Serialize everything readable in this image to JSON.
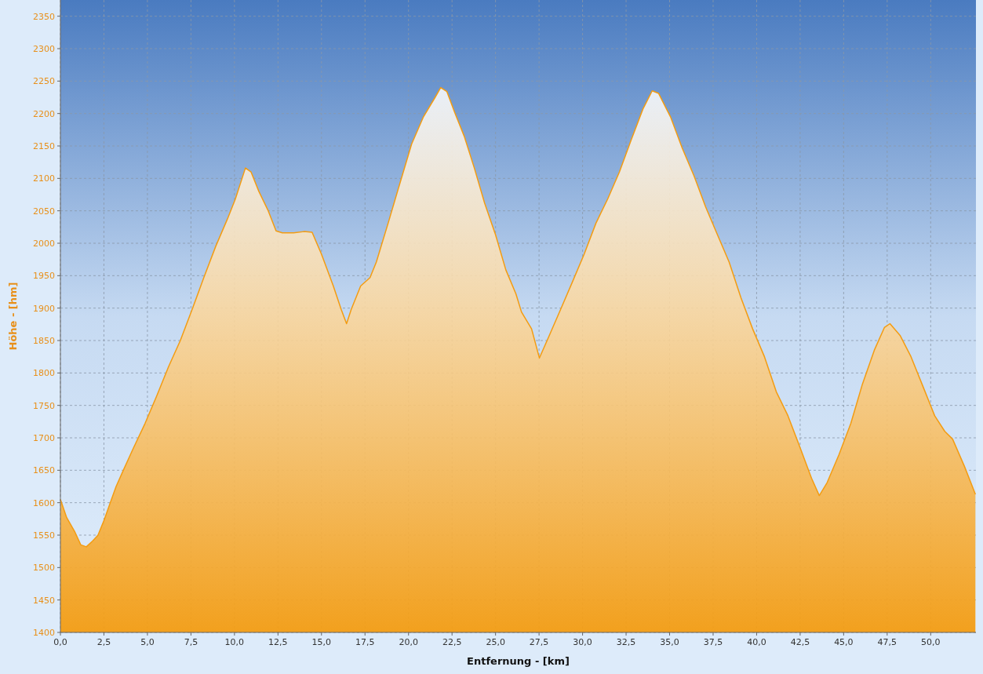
{
  "chart_data": {
    "type": "area",
    "xlabel": "Entfernung - [km]",
    "ylabel": "Höhe - [hm]",
    "grid": true,
    "xlim": [
      0,
      52.6
    ],
    "ylim": [
      1400,
      2375
    ],
    "xticks": [
      {
        "value": 0,
        "label": "0,0"
      },
      {
        "value": 2.5,
        "label": "2,5"
      },
      {
        "value": 5,
        "label": "5,0"
      },
      {
        "value": 7.5,
        "label": "7,5"
      },
      {
        "value": 10,
        "label": "10,0"
      },
      {
        "value": 12.5,
        "label": "12,5"
      },
      {
        "value": 15,
        "label": "15,0"
      },
      {
        "value": 17.5,
        "label": "17,5"
      },
      {
        "value": 20,
        "label": "20,0"
      },
      {
        "value": 22.5,
        "label": "22,5"
      },
      {
        "value": 25,
        "label": "25,0"
      },
      {
        "value": 27.5,
        "label": "27,5"
      },
      {
        "value": 30,
        "label": "30,0"
      },
      {
        "value": 32.5,
        "label": "32,5"
      },
      {
        "value": 35,
        "label": "35,0"
      },
      {
        "value": 37.5,
        "label": "37,5"
      },
      {
        "value": 40,
        "label": "40,0"
      },
      {
        "value": 42.5,
        "label": "42,5"
      },
      {
        "value": 45,
        "label": "45,0"
      },
      {
        "value": 47.5,
        "label": "47,5"
      },
      {
        "value": 50,
        "label": "50,0"
      }
    ],
    "yticks": [
      1400,
      1450,
      1500,
      1550,
      1600,
      1650,
      1700,
      1750,
      1800,
      1850,
      1900,
      1950,
      2000,
      2050,
      2100,
      2150,
      2200,
      2250,
      2300,
      2350
    ],
    "series": [
      {
        "color": "#f39c12",
        "x": [
          0,
          0.36,
          0.81,
          1.17,
          1.49,
          1.85,
          2.16,
          2.48,
          2.84,
          3.2,
          3.65,
          4.19,
          4.86,
          5.54,
          6.22,
          6.89,
          7.57,
          8.24,
          8.92,
          9.59,
          10.05,
          10.63,
          10.95,
          11.4,
          11.94,
          12.39,
          12.75,
          13.4,
          14.0,
          14.46,
          15.0,
          15.68,
          16.13,
          16.44,
          16.71,
          17.25,
          17.79,
          18.15,
          18.83,
          19.5,
          20.18,
          20.86,
          21.53,
          21.85,
          22.2,
          22.66,
          23.2,
          23.78,
          24.37,
          25.0,
          25.59,
          26.17,
          26.49,
          27.07,
          27.52,
          28.06,
          28.74,
          29.41,
          30.09,
          30.77,
          31.44,
          32.12,
          32.79,
          33.47,
          34.0,
          34.37,
          35.05,
          35.72,
          36.4,
          37.07,
          37.75,
          38.42,
          39.1,
          39.77,
          40.45,
          41.13,
          41.8,
          42.48,
          43.15,
          43.6,
          44.05,
          44.73,
          45.41,
          46.08,
          46.76,
          47.34,
          47.66,
          48.24,
          48.87,
          49.59,
          50.23,
          50.81,
          51.26,
          51.94,
          52.57
        ],
        "values": [
          1605,
          1577,
          1556,
          1535,
          1532,
          1541,
          1550,
          1571,
          1598,
          1625,
          1652,
          1684,
          1722,
          1765,
          1810,
          1850,
          1898,
          1947,
          1995,
          2037,
          2068,
          2116,
          2110,
          2080,
          2050,
          2019,
          2016,
          2016,
          2018,
          2017,
          1983,
          1934,
          1898,
          1876,
          1898,
          1934,
          1947,
          1971,
          2031,
          2092,
          2153,
          2195,
          2225,
          2240,
          2234,
          2201,
          2165,
          2116,
          2062,
          2013,
          1959,
          1922,
          1894,
          1868,
          1823,
          1856,
          1898,
          1940,
          1983,
          2031,
          2068,
          2110,
          2159,
          2207,
          2235,
          2231,
          2195,
          2147,
          2104,
          2056,
          2013,
          1971,
          1916,
          1868,
          1825,
          1771,
          1734,
          1686,
          1638,
          1611,
          1631,
          1674,
          1722,
          1783,
          1835,
          1870,
          1876,
          1858,
          1825,
          1777,
          1734,
          1710,
          1698,
          1656,
          1613
        ]
      }
    ]
  }
}
